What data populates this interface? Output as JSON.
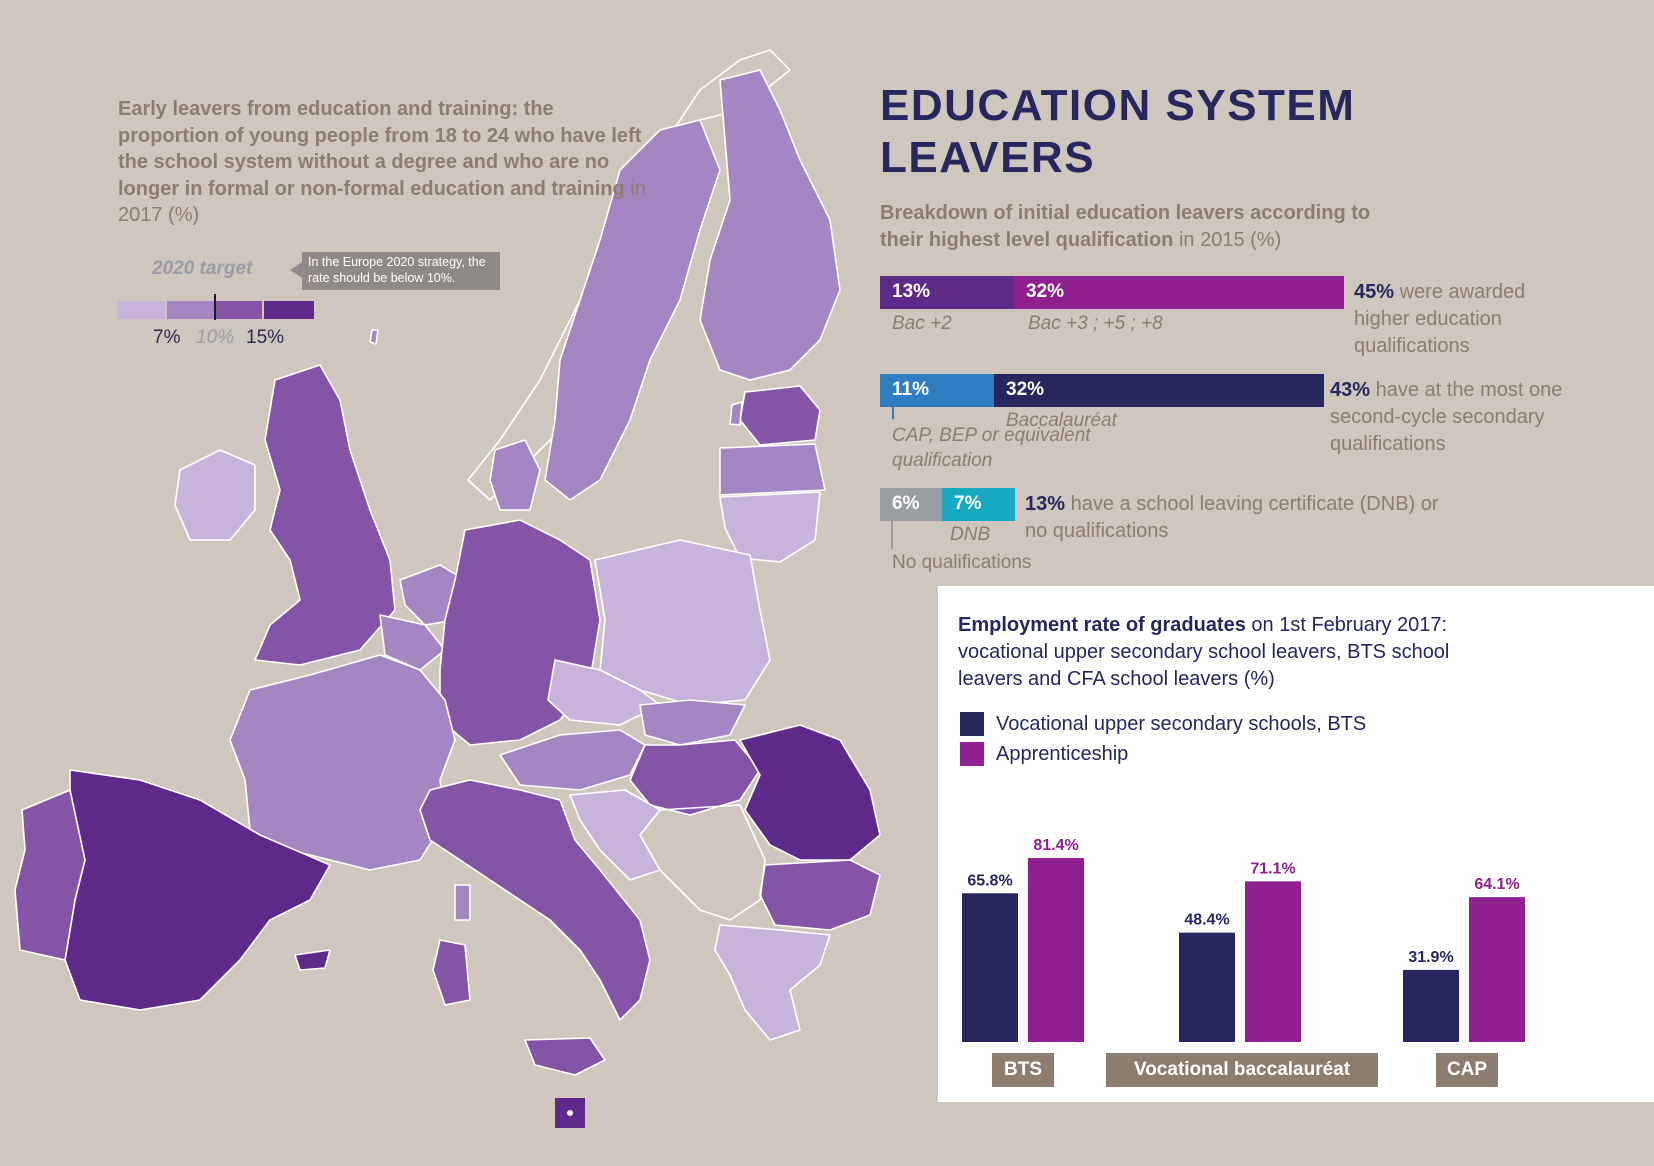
{
  "map": {
    "intro_bold": "Early leavers from education and training: the proportion of young people from 18 to 24 who have left the school system without a degree and who are no longer in formal or non-formal education and training",
    "intro_year": "in 2017 (%)",
    "target_label": "2020 target",
    "callout": "In the Europe 2020 strategy, the rate should be below 10%.",
    "legend_ticks": [
      "7%",
      "10%",
      "15%"
    ],
    "legend_colors": [
      "#c8b3db",
      "#a486c3",
      "#8455a6",
      "#5e2a8a"
    ]
  },
  "title_line1": "EDUCATION SYSTEM",
  "title_line2": "LEAVERS",
  "breakdown": {
    "subtitle_bold": "Breakdown of initial education leavers according to their highest level qualification",
    "subtitle_year": "in 2015 (%)",
    "rows": [
      {
        "segments": [
          {
            "value": "13%",
            "label": "Bac +2",
            "color": "#5e2a8a",
            "pct": 13
          },
          {
            "value": "32%",
            "label": "Bac +3 ; +5 ; +8",
            "color": "#8f2090",
            "pct": 32
          }
        ],
        "note_bold": "45%",
        "note_rest": "were awarded higher education qualifications"
      },
      {
        "segments": [
          {
            "value": "11%",
            "label": "CAP, BEP or equivalent qualification",
            "color": "#2f7ec1",
            "pct": 11
          },
          {
            "value": "32%",
            "label": "Baccalauréat",
            "color": "#27275e",
            "pct": 32
          }
        ],
        "note_bold": "43%",
        "note_rest": "have at the most one second-cycle secondary qualifications"
      },
      {
        "segments": [
          {
            "value": "6%",
            "label": "No qualifications",
            "color": "#9a9ea3",
            "pct": 6
          },
          {
            "value": "7%",
            "label": "DNB",
            "color": "#16a9c0",
            "pct": 7
          }
        ],
        "note_bold": "13%",
        "note_rest": "have a school leaving certificate (DNB) or no qualifications"
      }
    ]
  },
  "employment": {
    "title_bold": "Employment rate of graduates",
    "title_rest": "on 1st February 2017: vocational upper secondary school leavers, BTS school leavers and CFA school leavers (%)",
    "legend": [
      {
        "label": "Vocational upper secondary schools, BTS",
        "color": "#27275e"
      },
      {
        "label": "Apprenticeship",
        "color": "#8f2090"
      }
    ]
  },
  "chart_data": {
    "type": "bar",
    "categories": [
      "BTS",
      "Vocational baccalauréat",
      "CAP"
    ],
    "series": [
      {
        "name": "Vocational upper secondary schools, BTS",
        "values": [
          65.8,
          48.4,
          31.9
        ],
        "labels": [
          "65.8%",
          "48.4%",
          "31.9%"
        ],
        "color": "#27275e"
      },
      {
        "name": "Apprenticeship",
        "values": [
          81.4,
          71.1,
          64.1
        ],
        "labels": [
          "81.4%",
          "71.1%",
          "64.1%"
        ],
        "color": "#8f2090"
      }
    ],
    "ylim": [
      0,
      100
    ],
    "title": "Employment rate of graduates on 1st February 2017: vocational upper secondary school leavers, BTS school leavers and CFA school leavers (%)",
    "xlabel": "",
    "ylabel": ""
  }
}
